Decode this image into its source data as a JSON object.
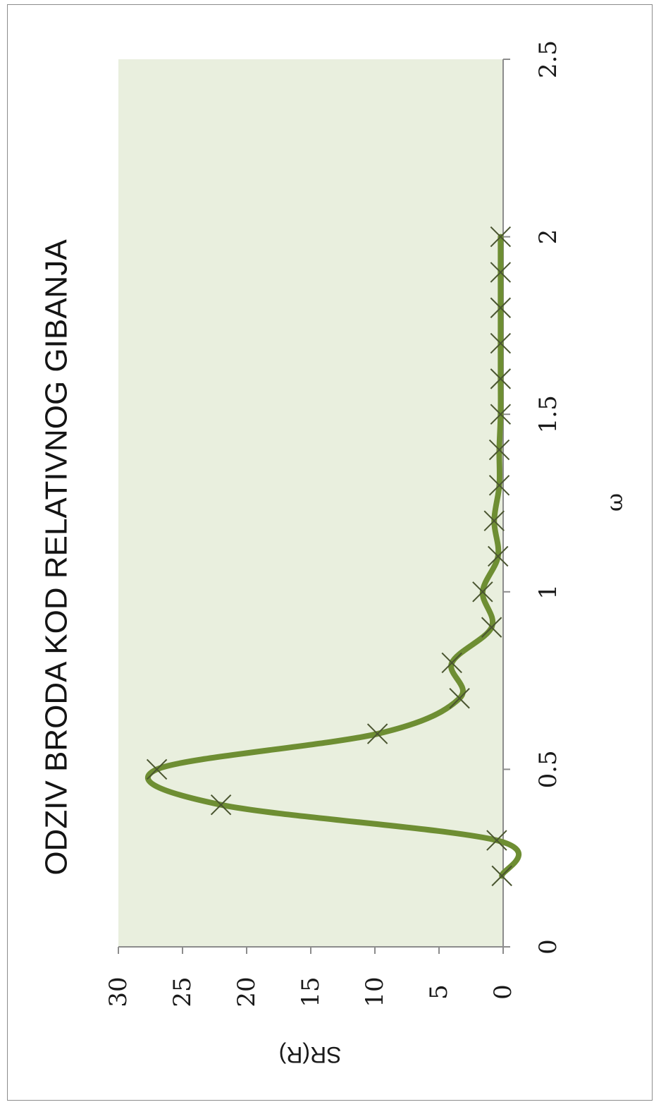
{
  "chart_data": {
    "type": "line",
    "title": "ODZIV BRODA KOD RELATIVNOG GIBANJA",
    "xlabel": "ω",
    "ylabel": "SR(R)",
    "xlim": [
      0,
      2.5
    ],
    "ylim": [
      0,
      30
    ],
    "xticks": [
      "0",
      "0.5",
      "1",
      "1.5",
      "2",
      "2.5"
    ],
    "yticks": [
      "0",
      "5",
      "10",
      "15",
      "20",
      "25",
      "30"
    ],
    "grid": false,
    "legend": "none",
    "colors": {
      "plot_bg": "#e9efde",
      "line": "#6e8e33",
      "marker": "#4a5530"
    },
    "series": [
      {
        "x": [
          0.2,
          0.3,
          0.4,
          0.5,
          0.6,
          0.7,
          0.8,
          0.9,
          1.0,
          1.1,
          1.2,
          1.3,
          1.4,
          1.5,
          1.6,
          1.7,
          1.8,
          1.9,
          2.0
        ],
        "y": [
          0.1,
          0.5,
          22.0,
          27.0,
          9.8,
          3.4,
          4.0,
          0.9,
          1.6,
          0.4,
          0.7,
          0.3,
          0.3,
          0.2,
          0.2,
          0.2,
          0.2,
          0.2,
          0.2
        ]
      }
    ]
  }
}
